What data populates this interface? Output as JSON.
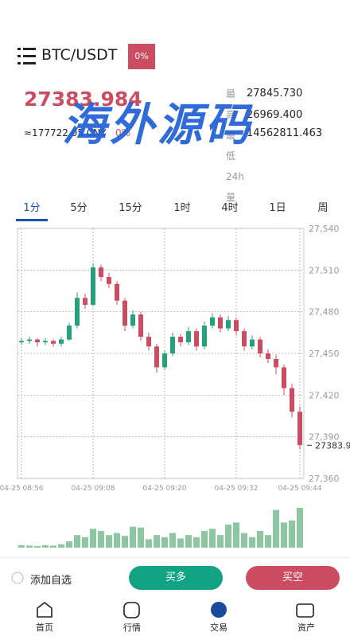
{
  "header": {
    "pair": "BTC/USDT",
    "badge": "0%"
  },
  "ticker": {
    "price": "27383.984",
    "cny": "≈177722.05 CNY",
    "change": "0%"
  },
  "stats": [
    {
      "label": "最高",
      "value": "27845.730"
    },
    {
      "label": "最低",
      "value": "26969.400"
    },
    {
      "label": "24h量",
      "value": "14562811.463"
    }
  ],
  "tabs": [
    "1分",
    "5分",
    "15分",
    "1时",
    "4时",
    "1日",
    "周"
  ],
  "watermark": "海外源码",
  "actions": {
    "favorite": "添加自选",
    "long": "买多",
    "short": "买空"
  },
  "nav": [
    "首页",
    "行情",
    "交易",
    "资产"
  ],
  "chart_data": {
    "type": "candlestick",
    "categories": [
      "04-25 08:56",
      null,
      null,
      null,
      null,
      null,
      null,
      null,
      null,
      "04-25 09:08",
      null,
      null,
      null,
      null,
      null,
      null,
      null,
      null,
      "04-25 09:20",
      null,
      null,
      null,
      null,
      null,
      null,
      null,
      null,
      "04-25 09:32",
      null,
      null,
      null,
      null,
      null,
      null,
      null,
      "04-25 09:44"
    ],
    "open": [
      27458,
      27459,
      27460,
      27458,
      27459,
      27457,
      27460,
      27470,
      27490,
      27485,
      27512,
      27505,
      27500,
      27488,
      27470,
      27478,
      27462,
      27455,
      27440,
      27450,
      27462,
      27458,
      27466,
      27455,
      27470,
      27476,
      27468,
      27474,
      27466,
      27455,
      27460,
      27450,
      27446,
      27440,
      27425,
      27408
    ],
    "high": [
      27461,
      27462,
      27461,
      27461,
      27460,
      27462,
      27472,
      27494,
      27493,
      27515,
      27514,
      27508,
      27502,
      27490,
      27481,
      27480,
      27465,
      27457,
      27452,
      27465,
      27464,
      27469,
      27468,
      27473,
      27479,
      27478,
      27477,
      27476,
      27468,
      27463,
      27462,
      27453,
      27449,
      27442,
      27428,
      27412
    ],
    "low": [
      27456,
      27457,
      27455,
      27456,
      27455,
      27455,
      27459,
      27468,
      27482,
      27484,
      27502,
      27497,
      27485,
      27466,
      27468,
      27459,
      27452,
      27436,
      27438,
      27448,
      27455,
      27456,
      27452,
      27453,
      27468,
      27465,
      27466,
      27463,
      27452,
      27453,
      27447,
      27443,
      27435,
      27420,
      27404,
      27381
    ],
    "close": [
      27459,
      27460,
      27458,
      27459,
      27457,
      27460,
      27470,
      27490,
      27485,
      27512,
      27505,
      27500,
      27488,
      27470,
      27478,
      27462,
      27455,
      27440,
      27450,
      27462,
      27458,
      27466,
      27455,
      27470,
      27476,
      27468,
      27474,
      27466,
      27455,
      27460,
      27450,
      27446,
      27440,
      27425,
      27408,
      27384
    ],
    "volume": [
      6,
      5,
      4,
      6,
      5,
      8,
      15,
      30,
      25,
      45,
      40,
      30,
      35,
      28,
      50,
      48,
      20,
      30,
      25,
      35,
      22,
      30,
      25,
      40,
      45,
      30,
      55,
      60,
      35,
      25,
      40,
      30,
      90,
      60,
      65,
      95
    ],
    "up_color": "#26a17b",
    "down_color": "#cc4d62",
    "ylim": [
      27360,
      27540
    ],
    "yticks": [
      {
        "value": 27360,
        "label": "27,360"
      },
      {
        "value": 27390,
        "label": "27,390"
      },
      {
        "value": 27420,
        "label": "27,420"
      },
      {
        "value": 27450,
        "label": "27,450"
      },
      {
        "value": 27480,
        "label": "27,480"
      },
      {
        "value": 27510,
        "label": "27,510"
      },
      {
        "value": 27540,
        "label": "27,540"
      }
    ],
    "last_price": 27383.9,
    "grid": true
  }
}
